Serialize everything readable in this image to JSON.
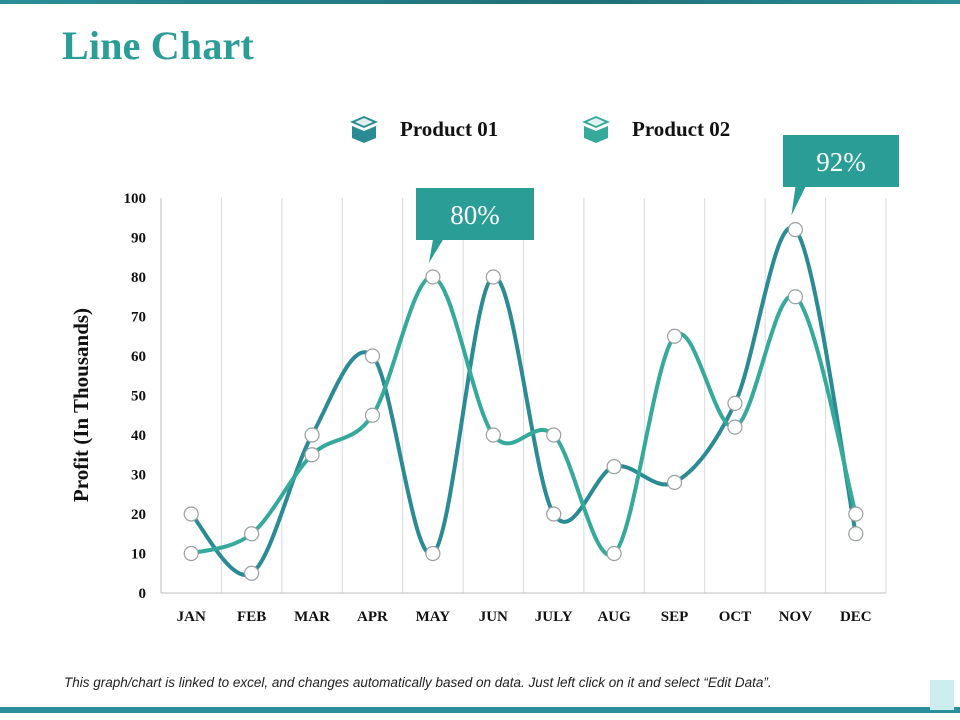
{
  "slide": {
    "title": "Line Chart",
    "footer_note": "This graph/chart is linked to excel, and changes automatically based on data. Just left click on it and select “Edit Data”."
  },
  "colors": {
    "title": "#2a9d97",
    "series_1": "#2a8b94",
    "series_2": "#35a99a",
    "callout": "#2a9d97",
    "grid": "#d9d9d9",
    "accent_bar": "#2a8f9a"
  },
  "chart_data": {
    "type": "line",
    "title": "",
    "xlabel": "",
    "ylabel": "Profit (In Thousands)",
    "ylim": [
      0,
      100
    ],
    "yticks": [
      0,
      10,
      20,
      30,
      40,
      50,
      60,
      70,
      80,
      90,
      100
    ],
    "categories": [
      "JAN",
      "FEB",
      "MAR",
      "APR",
      "MAY",
      "JUN",
      "JULY",
      "AUG",
      "SEP",
      "OCT",
      "NOV",
      "DEC"
    ],
    "smooth": true,
    "grid": "vertical",
    "legend_position": "top-center",
    "series": [
      {
        "name": "Product 01",
        "icon": "box-icon",
        "color": "#2a8b94",
        "values": [
          20,
          5,
          40,
          60,
          10,
          80,
          20,
          32,
          28,
          48,
          92,
          15
        ]
      },
      {
        "name": "Product 02",
        "icon": "box-icon",
        "color": "#35a99a",
        "values": [
          10,
          15,
          35,
          45,
          80,
          40,
          40,
          10,
          65,
          42,
          75,
          20
        ]
      }
    ],
    "annotations": [
      {
        "text": "80%",
        "category": "MAY",
        "value": 80
      },
      {
        "text": "92%",
        "category": "NOV",
        "value": 92
      }
    ]
  }
}
